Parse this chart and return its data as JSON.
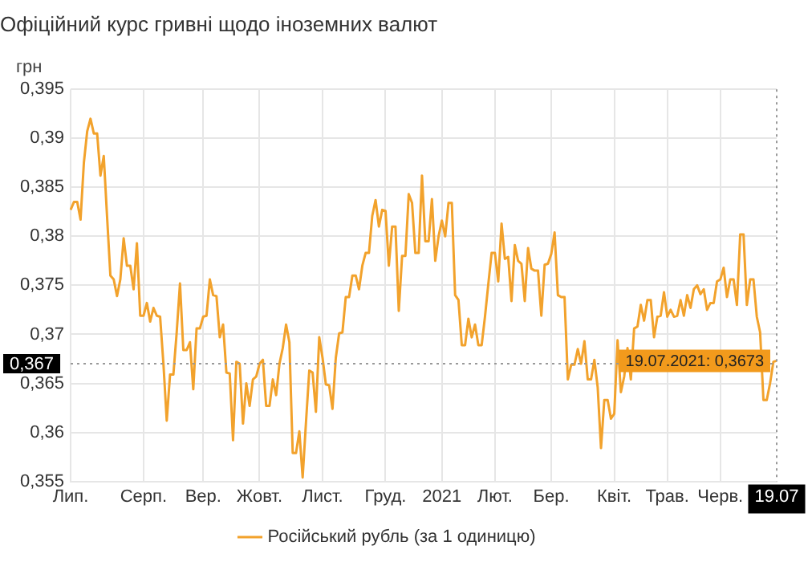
{
  "chart_data": {
    "type": "line",
    "title": "Офіційний курс гривні щодо іноземних валют",
    "ylabel": "грн",
    "categories": [
      "Лип.",
      null,
      null,
      null,
      null,
      null,
      null,
      null,
      null,
      null,
      null,
      null,
      null,
      null,
      null,
      null,
      null,
      null,
      null,
      null,
      null,
      null,
      "Серп.",
      null,
      null,
      null,
      null,
      null,
      null,
      null,
      null,
      null,
      null,
      null,
      null,
      null,
      null,
      null,
      null,
      null,
      "Вер.",
      null,
      null,
      null,
      null,
      null,
      null,
      null,
      null,
      null,
      null,
      null,
      null,
      null,
      null,
      null,
      null,
      "Жовт.",
      null,
      null,
      null,
      null,
      null,
      null,
      null,
      null,
      null,
      null,
      null,
      null,
      null,
      null,
      null,
      null,
      null,
      null,
      "Лист.",
      null,
      null,
      null,
      null,
      null,
      null,
      null,
      null,
      null,
      null,
      null,
      null,
      null,
      null,
      null,
      null,
      null,
      null,
      "Груд.",
      null,
      null,
      null,
      null,
      null,
      null,
      null,
      null,
      null,
      null,
      null,
      null,
      null,
      null,
      null,
      null,
      "2021",
      null,
      null,
      null,
      null,
      null,
      null,
      null,
      null,
      null,
      null,
      null,
      null,
      null,
      null,
      null,
      "Лют.",
      null,
      null,
      null,
      null,
      null,
      null,
      null,
      null,
      null,
      null,
      null,
      null,
      null,
      null,
      null,
      null,
      "Бер.",
      null,
      null,
      null,
      null,
      null,
      null,
      null,
      null,
      null,
      null,
      null,
      null,
      null,
      null,
      null,
      null,
      null,
      null,
      "Квіт.",
      null,
      null,
      null,
      null,
      null,
      null,
      null,
      null,
      null,
      null,
      null,
      null,
      null,
      null,
      null,
      "Трав.",
      null,
      null,
      null,
      null,
      null,
      null,
      null,
      null,
      null,
      null,
      null,
      null,
      null,
      null,
      null,
      "Черв.",
      null,
      null,
      null,
      null,
      null,
      null,
      null,
      null,
      null,
      null,
      null,
      null,
      null,
      null,
      null,
      null,
      "19.07"
    ],
    "ylim": [
      0.355,
      0.395
    ],
    "yticks": [
      {
        "value": 0.355,
        "label": "0,355"
      },
      {
        "value": 0.36,
        "label": "0,36"
      },
      {
        "value": 0.365,
        "label": "0,365"
      },
      {
        "value": 0.37,
        "label": "0,37"
      },
      {
        "value": 0.375,
        "label": "0,375"
      },
      {
        "value": 0.38,
        "label": "0,38"
      },
      {
        "value": 0.385,
        "label": "0,385"
      },
      {
        "value": 0.39,
        "label": "0,39"
      },
      {
        "value": 0.395,
        "label": "0,395"
      }
    ],
    "grid": true,
    "legend": "bottom",
    "marker": "none",
    "line_style": "solid",
    "ref_lines": [
      {
        "axis": "y",
        "value": 0.367,
        "label": "0,367",
        "line_style": "dotted"
      },
      {
        "axis": "x",
        "value": "19.07",
        "line_style": "dotted"
      }
    ],
    "annotations": [
      {
        "text": "19.07.2021: 0,3673",
        "x": "19.07",
        "y": 0.3673
      }
    ],
    "series": [
      {
        "name": "Російський рубль (за 1 одиницю)",
        "color": "#f2a22c",
        "values": [
          0.3827,
          0.3835,
          0.3835,
          0.3817,
          0.3875,
          0.3907,
          0.392,
          0.3905,
          0.3905,
          0.3862,
          0.3882,
          0.382,
          0.376,
          0.3756,
          0.3739,
          0.3756,
          0.3798,
          0.377,
          0.377,
          0.3746,
          0.3793,
          0.3719,
          0.3719,
          0.3732,
          0.3713,
          0.3727,
          0.3719,
          0.3718,
          0.367,
          0.3612,
          0.3659,
          0.3659,
          0.3702,
          0.3752,
          0.3684,
          0.3684,
          0.3692,
          0.3644,
          0.3706,
          0.3706,
          0.3718,
          0.3719,
          0.3756,
          0.374,
          0.3739,
          0.3697,
          0.371,
          0.3661,
          0.366,
          0.3592,
          0.3672,
          0.367,
          0.3609,
          0.365,
          0.3627,
          0.3654,
          0.3657,
          0.367,
          0.3674,
          0.3627,
          0.3627,
          0.3654,
          0.3638,
          0.367,
          0.3686,
          0.371,
          0.3692,
          0.3579,
          0.3579,
          0.3601,
          0.3554,
          0.361,
          0.3663,
          0.3661,
          0.3621,
          0.3697,
          0.3676,
          0.3649,
          0.3648,
          0.3624,
          0.3676,
          0.3701,
          0.3702,
          0.3738,
          0.3738,
          0.376,
          0.376,
          0.3746,
          0.377,
          0.3783,
          0.3783,
          0.3821,
          0.3837,
          0.381,
          0.3827,
          0.3826,
          0.377,
          0.381,
          0.381,
          0.3724,
          0.378,
          0.378,
          0.3843,
          0.3834,
          0.3783,
          0.3783,
          0.3862,
          0.3795,
          0.3795,
          0.3838,
          0.3775,
          0.38,
          0.3816,
          0.38,
          0.3834,
          0.3834,
          0.374,
          0.3735,
          0.3689,
          0.3689,
          0.3716,
          0.3697,
          0.371,
          0.3689,
          0.3689,
          0.3718,
          0.3751,
          0.3783,
          0.3783,
          0.3754,
          0.3813,
          0.3777,
          0.3779,
          0.3734,
          0.3791,
          0.3775,
          0.3772,
          0.3734,
          0.3788,
          0.3767,
          0.3765,
          0.3765,
          0.3719,
          0.3771,
          0.3772,
          0.3782,
          0.3804,
          0.374,
          0.3738,
          0.3738,
          0.3654,
          0.3669,
          0.3669,
          0.3685,
          0.367,
          0.3693,
          0.3654,
          0.3654,
          0.3674,
          0.3646,
          0.3584,
          0.3633,
          0.3633,
          0.3614,
          0.3619,
          0.3694,
          0.3641,
          0.3657,
          0.3686,
          0.3654,
          0.3706,
          0.3708,
          0.373,
          0.3714,
          0.3735,
          0.3735,
          0.3697,
          0.3718,
          0.3719,
          0.3743,
          0.3718,
          0.3725,
          0.3718,
          0.3719,
          0.3735,
          0.3719,
          0.374,
          0.3727,
          0.3746,
          0.375,
          0.3741,
          0.3746,
          0.3725,
          0.3732,
          0.3732,
          0.3754,
          0.3756,
          0.3768,
          0.3738,
          0.3756,
          0.3756,
          0.373,
          0.3802,
          0.3802,
          0.373,
          0.3756,
          0.3756,
          0.3718,
          0.3702,
          0.3633,
          0.3633,
          0.365,
          0.3672,
          0.3673
        ]
      }
    ]
  }
}
